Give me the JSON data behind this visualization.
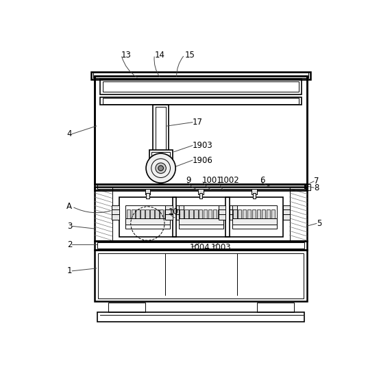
{
  "bg_color": "#ffffff",
  "line_color": "#000000",
  "leader_color": "#444444",
  "label_color": "#000000",
  "label_font_size": 8.5,
  "fig_width": 5.72,
  "fig_height": 5.39
}
